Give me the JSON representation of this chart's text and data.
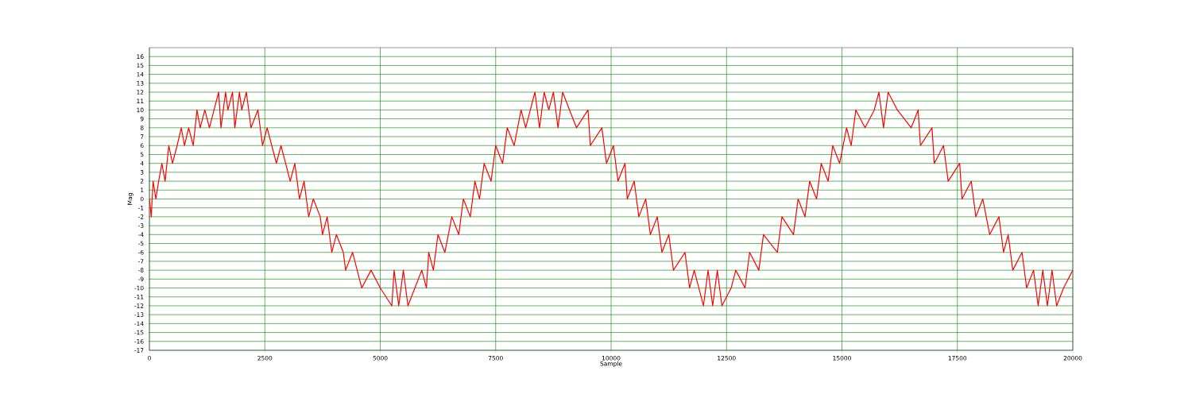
{
  "chart_data": {
    "type": "line",
    "xlabel": "Sample",
    "ylabel": "Mag",
    "xlim": [
      0,
      20000
    ],
    "ylim": [
      -17,
      17
    ],
    "xticks": [
      0,
      2500,
      5000,
      7500,
      10000,
      12500,
      15000,
      17500,
      20000
    ],
    "yticks": [
      -17,
      -16,
      -15,
      -14,
      -13,
      -12,
      -11,
      -10,
      -9,
      -8,
      -7,
      -6,
      -5,
      -4,
      -3,
      -2,
      -1,
      0,
      1,
      2,
      3,
      4,
      5,
      6,
      7,
      8,
      9,
      10,
      11,
      12,
      13,
      14,
      15,
      16
    ],
    "grid": true,
    "x": [
      0,
      40,
      80,
      140,
      200,
      270,
      340,
      420,
      500,
      600,
      690,
      760,
      850,
      950,
      1030,
      1100,
      1200,
      1300,
      1400,
      1500,
      1550,
      1650,
      1700,
      1800,
      1850,
      1950,
      2000,
      2100,
      2200,
      2350,
      2450,
      2550,
      2650,
      2750,
      2850,
      2950,
      3050,
      3150,
      3250,
      3350,
      3450,
      3550,
      3700,
      3750,
      3850,
      3950,
      4050,
      4200,
      4250,
      4400,
      4600,
      4800,
      5000,
      5250,
      5300,
      5400,
      5500,
      5600,
      5750,
      5900,
      6000,
      6050,
      6150,
      6250,
      6400,
      6550,
      6700,
      6800,
      6950,
      7050,
      7150,
      7250,
      7400,
      7500,
      7650,
      7750,
      7900,
      8050,
      8150,
      8250,
      8350,
      8450,
      8550,
      8650,
      8750,
      8850,
      8950,
      9100,
      9250,
      9500,
      9550,
      9800,
      9900,
      10050,
      10150,
      10300,
      10350,
      10500,
      10600,
      10750,
      10850,
      11000,
      11100,
      11250,
      11350,
      11600,
      11700,
      11800,
      12000,
      12100,
      12200,
      12300,
      12400,
      12600,
      12700,
      12900,
      13000,
      13200,
      13300,
      13600,
      13700,
      13950,
      14050,
      14200,
      14300,
      14450,
      14550,
      14700,
      14800,
      14950,
      15100,
      15200,
      15300,
      15500,
      15700,
      15800,
      15900,
      16000,
      16200,
      16500,
      16650,
      16700,
      16950,
      17000,
      17200,
      17300,
      17550,
      17600,
      17800,
      17900,
      18050,
      18200,
      18400,
      18500,
      18600,
      18700,
      18900,
      19000,
      19150,
      19250,
      19350,
      19450,
      19550,
      19650,
      19800,
      20000
    ],
    "series": [
      {
        "color": "#ff0000",
        "values": [
          0,
          -2,
          2,
          0,
          2,
          4,
          2,
          6,
          4,
          6,
          8,
          6,
          8,
          6,
          10,
          8,
          10,
          8,
          10,
          12,
          8,
          12,
          10,
          12,
          8,
          12,
          10,
          12,
          8,
          10,
          6,
          8,
          6,
          4,
          6,
          4,
          2,
          4,
          0,
          2,
          -2,
          0,
          -2,
          -4,
          -2,
          -6,
          -4,
          -6,
          -8,
          -6,
          -10,
          -8,
          -10,
          -12,
          -8,
          -12,
          -8,
          -12,
          -10,
          -8,
          -10,
          -6,
          -8,
          -4,
          -6,
          -2,
          -4,
          0,
          -2,
          2,
          0,
          4,
          2,
          6,
          4,
          8,
          6,
          10,
          8,
          10,
          12,
          8,
          12,
          10,
          12,
          8,
          12,
          10,
          8,
          10,
          6,
          8,
          4,
          6,
          2,
          4,
          0,
          2,
          -2,
          0,
          -4,
          -2,
          -6,
          -4,
          -8,
          -6,
          -10,
          -8,
          -12,
          -8,
          -12,
          -8,
          -12,
          -10,
          -8,
          -10,
          -6,
          -8,
          -4,
          -6,
          -2,
          -4,
          0,
          -2,
          2,
          0,
          4,
          2,
          6,
          4,
          8,
          6,
          10,
          8,
          10,
          12,
          8,
          12,
          10,
          8,
          10,
          6,
          8,
          4,
          6,
          2,
          4,
          0,
          2,
          -2,
          0,
          -4,
          -2,
          -6,
          -4,
          -8,
          -6,
          -10,
          -8,
          -12,
          -8,
          -12,
          -8,
          -12,
          -10,
          -8
        ]
      }
    ]
  }
}
